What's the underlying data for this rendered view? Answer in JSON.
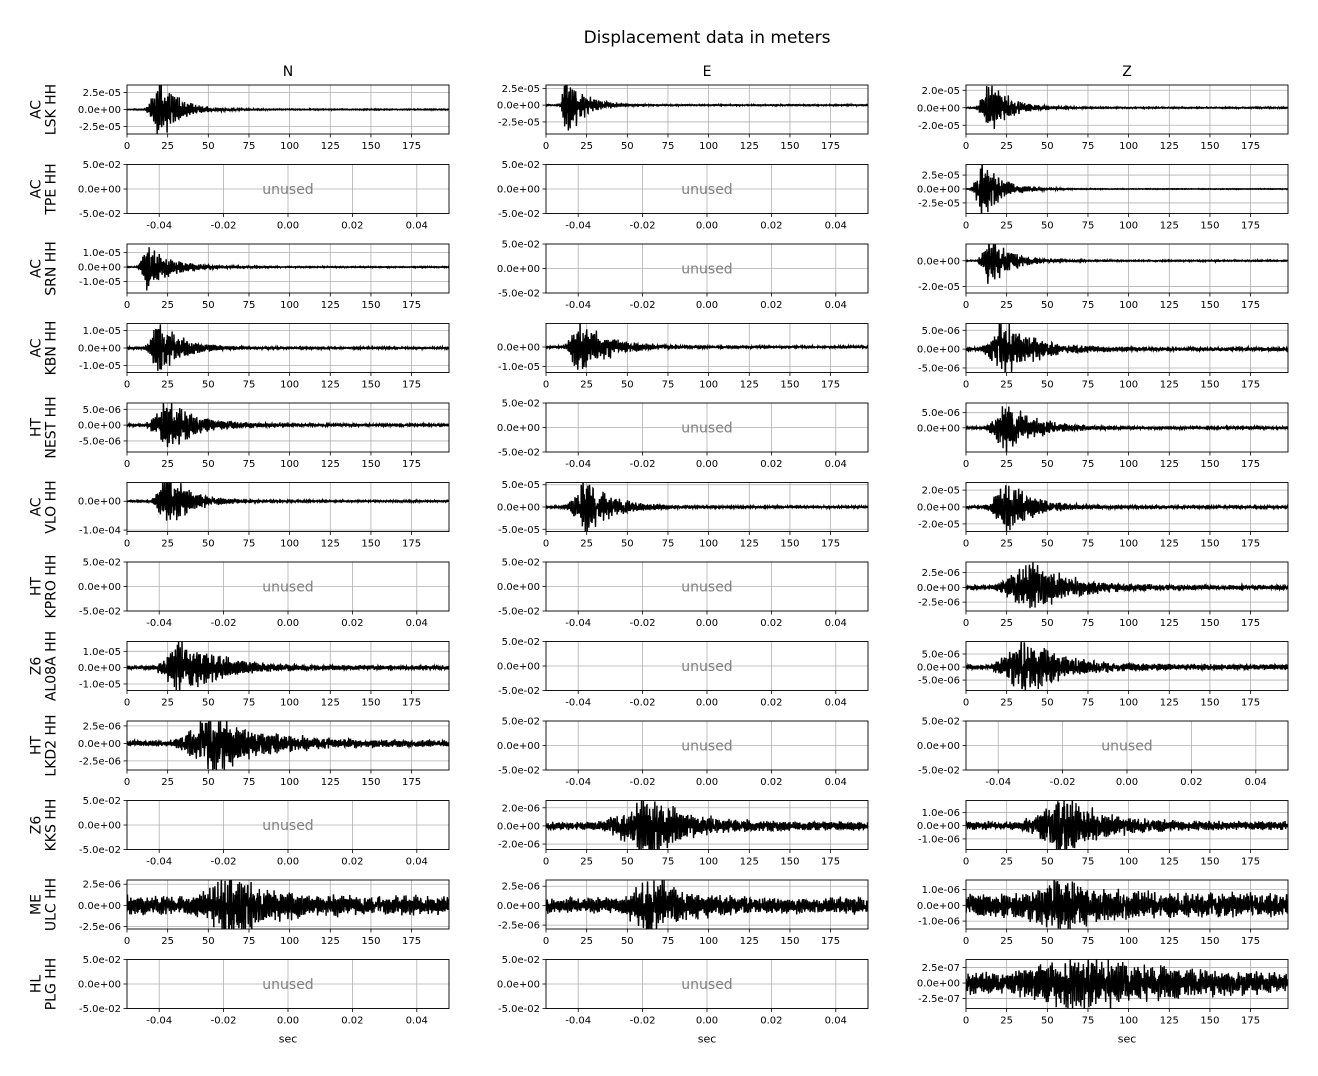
{
  "chart_data": {
    "type": "line",
    "title": "Displacement data in meters",
    "columns": [
      "N",
      "E",
      "Z"
    ],
    "xlabel": "sec",
    "unused_label": "unused",
    "waveform_xlim": [
      0,
      198
    ],
    "waveform_xticks": [
      0,
      25,
      50,
      75,
      100,
      125,
      150,
      175
    ],
    "unused_xlim": [
      -0.05,
      0.05
    ],
    "unused_xticks": [
      "-0.04",
      "-0.02",
      "0.00",
      "0.02",
      "0.04"
    ],
    "unused_ylim": [
      -0.05,
      0.05
    ],
    "unused_yticks": [
      "5.0e-02",
      "0.0e+00",
      "-5.0e-02"
    ],
    "grid": true,
    "line_color": "#000000",
    "unused_text_color": "#808080",
    "rows": [
      {
        "network": "AC",
        "station": "LSK HH",
        "panels": [
          {
            "unused": false,
            "onset": 10,
            "peak": 20,
            "decay": 12,
            "amp": 3.5e-05,
            "noise": 0.015,
            "seed": 11,
            "ylim": [
              -3.6e-05,
              3.6e-05
            ],
            "yticks": [
              {
                "v": 2.5e-05,
                "t": "2.5e-05"
              },
              {
                "v": 0,
                "t": "0.0e+00"
              },
              {
                "v": -2.5e-05,
                "t": "-2.5e-05"
              }
            ]
          },
          {
            "unused": false,
            "onset": 8,
            "peak": 12,
            "decay": 10,
            "amp": 4.3e-05,
            "noise": 0.015,
            "seed": 12,
            "ylim": [
              -4.3e-05,
              3e-05
            ],
            "yticks": [
              {
                "v": 2.5e-05,
                "t": "2.5e-05"
              },
              {
                "v": 0,
                "t": "0.0e+00"
              },
              {
                "v": -2.5e-05,
                "t": "-2.5e-05"
              }
            ]
          },
          {
            "unused": false,
            "onset": 5,
            "peak": 14,
            "decay": 12,
            "amp": 2.6e-05,
            "noise": 0.02,
            "seed": 13,
            "ylim": [
              -3e-05,
              2.6e-05
            ],
            "yticks": [
              {
                "v": 2e-05,
                "t": "2.0e-05"
              },
              {
                "v": 0,
                "t": "0.0e+00"
              },
              {
                "v": -2e-05,
                "t": "-2.0e-05"
              }
            ]
          }
        ]
      },
      {
        "network": "AC",
        "station": "TPE HH",
        "panels": [
          {
            "unused": true
          },
          {
            "unused": true
          },
          {
            "unused": false,
            "onset": 2,
            "peak": 10,
            "decay": 12,
            "amp": 4.2e-05,
            "noise": 0.01,
            "seed": 21,
            "ylim": [
              -4.4e-05,
              4.4e-05
            ],
            "yticks": [
              {
                "v": 2.5e-05,
                "t": "2.5e-05"
              },
              {
                "v": 0,
                "t": "0.0e+00"
              },
              {
                "v": -2.5e-05,
                "t": "-2.5e-05"
              }
            ]
          }
        ]
      },
      {
        "network": "AC",
        "station": "SRN HH",
        "panels": [
          {
            "unused": false,
            "onset": 6,
            "peak": 12,
            "decay": 14,
            "amp": 1.4e-05,
            "noise": 0.02,
            "seed": 31,
            "ylim": [
              -1.8e-05,
              1.6e-05
            ],
            "yticks": [
              {
                "v": 1e-05,
                "t": "1.0e-05"
              },
              {
                "v": 0,
                "t": "0.0e+00"
              },
              {
                "v": -1e-05,
                "t": "-1.0e-05"
              }
            ]
          },
          {
            "unused": true
          },
          {
            "unused": false,
            "onset": 6,
            "peak": 14,
            "decay": 12,
            "amp": 1.8e-05,
            "noise": 0.02,
            "seed": 32,
            "ylim": [
              -2.5e-05,
              1.3e-05
            ],
            "yticks": [
              {
                "v": 0,
                "t": "0.0e+00"
              },
              {
                "v": -2e-05,
                "t": "-2.0e-05"
              }
            ]
          }
        ]
      },
      {
        "network": "AC",
        "station": "KBN HH",
        "panels": [
          {
            "unused": false,
            "onset": 10,
            "peak": 19,
            "decay": 14,
            "amp": 1.4e-05,
            "noise": 0.03,
            "seed": 41,
            "ylim": [
              -1.4e-05,
              1.4e-05
            ],
            "yticks": [
              {
                "v": 1e-05,
                "t": "1.0e-05"
              },
              {
                "v": 0,
                "t": "0.0e+00"
              },
              {
                "v": -1e-05,
                "t": "-1.0e-05"
              }
            ]
          },
          {
            "unused": false,
            "onset": 10,
            "peak": 20,
            "decay": 16,
            "amp": 1.3e-05,
            "noise": 0.03,
            "seed": 42,
            "ylim": [
              -1.3e-05,
              1.2e-05
            ],
            "yticks": [
              {
                "v": 0,
                "t": "0.0e+00"
              },
              {
                "v": -1e-05,
                "t": "-1.0e-05"
              }
            ]
          },
          {
            "unused": false,
            "onset": 8,
            "peak": 22,
            "decay": 18,
            "amp": 6.5e-06,
            "noise": 0.06,
            "seed": 43,
            "ylim": [
              -6.2e-06,
              6.8e-06
            ],
            "yticks": [
              {
                "v": 5e-06,
                "t": "5.0e-06"
              },
              {
                "v": 0,
                "t": "0.0e+00"
              },
              {
                "v": -5e-06,
                "t": "-5.0e-06"
              }
            ]
          }
        ]
      },
      {
        "network": "HT",
        "station": "NEST HH",
        "panels": [
          {
            "unused": false,
            "onset": 10,
            "peak": 24,
            "decay": 18,
            "amp": 7e-06,
            "noise": 0.04,
            "seed": 51,
            "ylim": [
              -8.5e-06,
              7e-06
            ],
            "yticks": [
              {
                "v": 5e-06,
                "t": "5.0e-06"
              },
              {
                "v": 0,
                "t": "0.0e+00"
              },
              {
                "v": -5e-06,
                "t": "-5.0e-06"
              }
            ]
          },
          {
            "unused": true
          },
          {
            "unused": false,
            "onset": 10,
            "peak": 24,
            "decay": 18,
            "amp": 7e-06,
            "noise": 0.04,
            "seed": 52,
            "ylim": [
              -8e-06,
              8.2e-06
            ],
            "yticks": [
              {
                "v": 5e-06,
                "t": "5.0e-06"
              },
              {
                "v": 0,
                "t": "0.0e+00"
              }
            ]
          }
        ]
      },
      {
        "network": "AC",
        "station": "VLO HH",
        "panels": [
          {
            "unused": false,
            "onset": 14,
            "peak": 24,
            "decay": 14,
            "amp": 8.5e-05,
            "noise": 0.025,
            "seed": 61,
            "ylim": [
              -0.000105,
              6.5e-05
            ],
            "yticks": [
              {
                "v": 0,
                "t": "0.0e+00"
              },
              {
                "v": -0.0001,
                "t": "-1.0e-04"
              }
            ]
          },
          {
            "unused": false,
            "onset": 10,
            "peak": 24,
            "decay": 16,
            "amp": 5.3e-05,
            "noise": 0.03,
            "seed": 62,
            "ylim": [
              -5.5e-05,
              5.5e-05
            ],
            "yticks": [
              {
                "v": 5e-05,
                "t": "5.0e-05"
              },
              {
                "v": 0,
                "t": "0.0e+00"
              },
              {
                "v": -5e-05,
                "t": "-5.0e-05"
              }
            ]
          },
          {
            "unused": false,
            "onset": 10,
            "peak": 24,
            "decay": 16,
            "amp": 2.7e-05,
            "noise": 0.04,
            "seed": 63,
            "ylim": [
              -2.9e-05,
              2.9e-05
            ],
            "yticks": [
              {
                "v": 2e-05,
                "t": "2.0e-05"
              },
              {
                "v": 0,
                "t": "0.0e+00"
              },
              {
                "v": -2e-05,
                "t": "-2.0e-05"
              }
            ]
          }
        ]
      },
      {
        "network": "HT",
        "station": "KPRO HH",
        "panels": [
          {
            "unused": true
          },
          {
            "unused": true
          },
          {
            "unused": false,
            "onset": 16,
            "peak": 38,
            "decay": 22,
            "amp": 3.8e-06,
            "noise": 0.08,
            "seed": 71,
            "ylim": [
              -4e-06,
              4.3e-06
            ],
            "yticks": [
              {
                "v": 2.5e-06,
                "t": "2.5e-06"
              },
              {
                "v": 0,
                "t": "0.0e+00"
              },
              {
                "v": -2.5e-06,
                "t": "-2.5e-06"
              }
            ]
          }
        ]
      },
      {
        "network": "Z6",
        "station": "AL08A HH",
        "panels": [
          {
            "unused": false,
            "onset": 15,
            "peak": 33,
            "decay": 22,
            "amp": 1.6e-05,
            "noise": 0.06,
            "seed": 81,
            "ylim": [
              -1.4e-05,
              1.6e-05
            ],
            "yticks": [
              {
                "v": 1e-05,
                "t": "1.0e-05"
              },
              {
                "v": 0,
                "t": "0.0e+00"
              },
              {
                "v": -1e-05,
                "t": "-1.0e-05"
              }
            ]
          },
          {
            "unused": true
          },
          {
            "unused": false,
            "onset": 14,
            "peak": 34,
            "decay": 22,
            "amp": 1e-05,
            "noise": 0.08,
            "seed": 82,
            "ylim": [
              -9e-06,
              9.8e-06
            ],
            "yticks": [
              {
                "v": 5e-06,
                "t": "5.0e-06"
              },
              {
                "v": 0,
                "t": "0.0e+00"
              },
              {
                "v": -5e-06,
                "t": "-5.0e-06"
              }
            ]
          }
        ]
      },
      {
        "network": "HT",
        "station": "LKD2 HH",
        "panels": [
          {
            "unused": false,
            "onset": 25,
            "peak": 52,
            "decay": 28,
            "amp": 3.8e-06,
            "noise": 0.09,
            "seed": 91,
            "ylim": [
              -3.8e-06,
              3.2e-06
            ],
            "yticks": [
              {
                "v": 2.5e-06,
                "t": "2.5e-06"
              },
              {
                "v": 0,
                "t": "0.0e+00"
              },
              {
                "v": -2.5e-06,
                "t": "-2.5e-06"
              }
            ]
          },
          {
            "unused": true
          },
          {
            "unused": true
          }
        ]
      },
      {
        "network": "Z6",
        "station": "KKS HH",
        "panels": [
          {
            "unused": true
          },
          {
            "unused": false,
            "onset": 30,
            "peak": 62,
            "decay": 22,
            "amp": 3e-06,
            "noise": 0.12,
            "seed": 101,
            "ylim": [
              -2.6e-06,
              2.8e-06
            ],
            "yticks": [
              {
                "v": 2e-06,
                "t": "2.0e-06"
              },
              {
                "v": 0,
                "t": "0.0e+00"
              },
              {
                "v": -2e-06,
                "t": "-2.0e-06"
              }
            ]
          },
          {
            "unused": false,
            "onset": 30,
            "peak": 60,
            "decay": 22,
            "amp": 2e-06,
            "noise": 0.12,
            "seed": 102,
            "ylim": [
              -1.8e-06,
              1.9e-06
            ],
            "yticks": [
              {
                "v": 1e-06,
                "t": "1.0e-06"
              },
              {
                "v": 0,
                "t": "0.0e+00"
              },
              {
                "v": -1e-06,
                "t": "-1.0e-06"
              }
            ]
          }
        ]
      },
      {
        "network": "ME",
        "station": "ULC HH",
        "panels": [
          {
            "unused": false,
            "onset": 40,
            "peak": 64,
            "decay": 20,
            "amp": 3.5e-06,
            "noise": 0.25,
            "seed": 111,
            "ylim": [
              -2.8e-06,
              3e-06
            ],
            "yticks": [
              {
                "v": 2.5e-06,
                "t": "2.5e-06"
              },
              {
                "v": 0,
                "t": "0.0e+00"
              },
              {
                "v": -2.5e-06,
                "t": "-2.5e-06"
              }
            ]
          },
          {
            "unused": false,
            "onset": 45,
            "peak": 62,
            "decay": 20,
            "amp": 3.6e-06,
            "noise": 0.22,
            "seed": 112,
            "ylim": [
              -3e-06,
              3.3e-06
            ],
            "yticks": [
              {
                "v": 2.5e-06,
                "t": "2.5e-06"
              },
              {
                "v": 0,
                "t": "0.0e+00"
              },
              {
                "v": -2.5e-06,
                "t": "-2.5e-06"
              }
            ]
          },
          {
            "unused": false,
            "onset": 30,
            "peak": 55,
            "decay": 26,
            "amp": 1.5e-06,
            "noise": 0.4,
            "seed": 113,
            "ylim": [
              -1.5e-06,
              1.6e-06
            ],
            "yticks": [
              {
                "v": 1e-06,
                "t": "1.0e-06"
              },
              {
                "v": 0,
                "t": "0.0e+00"
              },
              {
                "v": -1e-06,
                "t": "-1.0e-06"
              }
            ]
          }
        ]
      },
      {
        "network": "HL",
        "station": "PLG HH",
        "panels": [
          {
            "unused": true
          },
          {
            "unused": true
          },
          {
            "unused": false,
            "onset": 15,
            "peak": 70,
            "decay": 35,
            "amp": 4e-07,
            "noise": 0.35,
            "seed": 121,
            "ylim": [
              -4.1e-07,
              3.8e-07
            ],
            "yticks": [
              {
                "v": 2.5e-07,
                "t": "2.5e-07"
              },
              {
                "v": 0,
                "t": "0.0e+00"
              },
              {
                "v": -2.5e-07,
                "t": "-2.5e-07"
              }
            ]
          }
        ]
      }
    ]
  }
}
